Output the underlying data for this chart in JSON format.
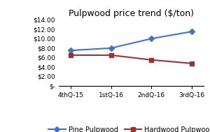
{
  "title": "Pulpwood price trend ($/ton)",
  "categories": [
    "4thQ-15",
    "1stQ-16",
    "2ndQ-16",
    "3rdQ-16"
  ],
  "series": [
    {
      "label": "Pine Pulpwood",
      "values": [
        7.5,
        8.0,
        10.0,
        11.5
      ],
      "color": "#4472C4",
      "marker": "D"
    },
    {
      "label": "Hardwood Pulpwood",
      "values": [
        6.5,
        6.5,
        5.5,
        4.75
      ],
      "color": "#943634",
      "marker": "s"
    }
  ],
  "ylim": [
    0,
    14
  ],
  "yticks": [
    0,
    2,
    4,
    6,
    8,
    10,
    12,
    14
  ],
  "ytick_labels": [
    "$-",
    "$2.00",
    "$4.00",
    "$6.00",
    "$8.00",
    "$10.00",
    "$12.00",
    "$14.00"
  ],
  "background_color": "#ffffff",
  "title_fontsize": 9,
  "legend_fontsize": 7,
  "tick_fontsize": 6.5
}
